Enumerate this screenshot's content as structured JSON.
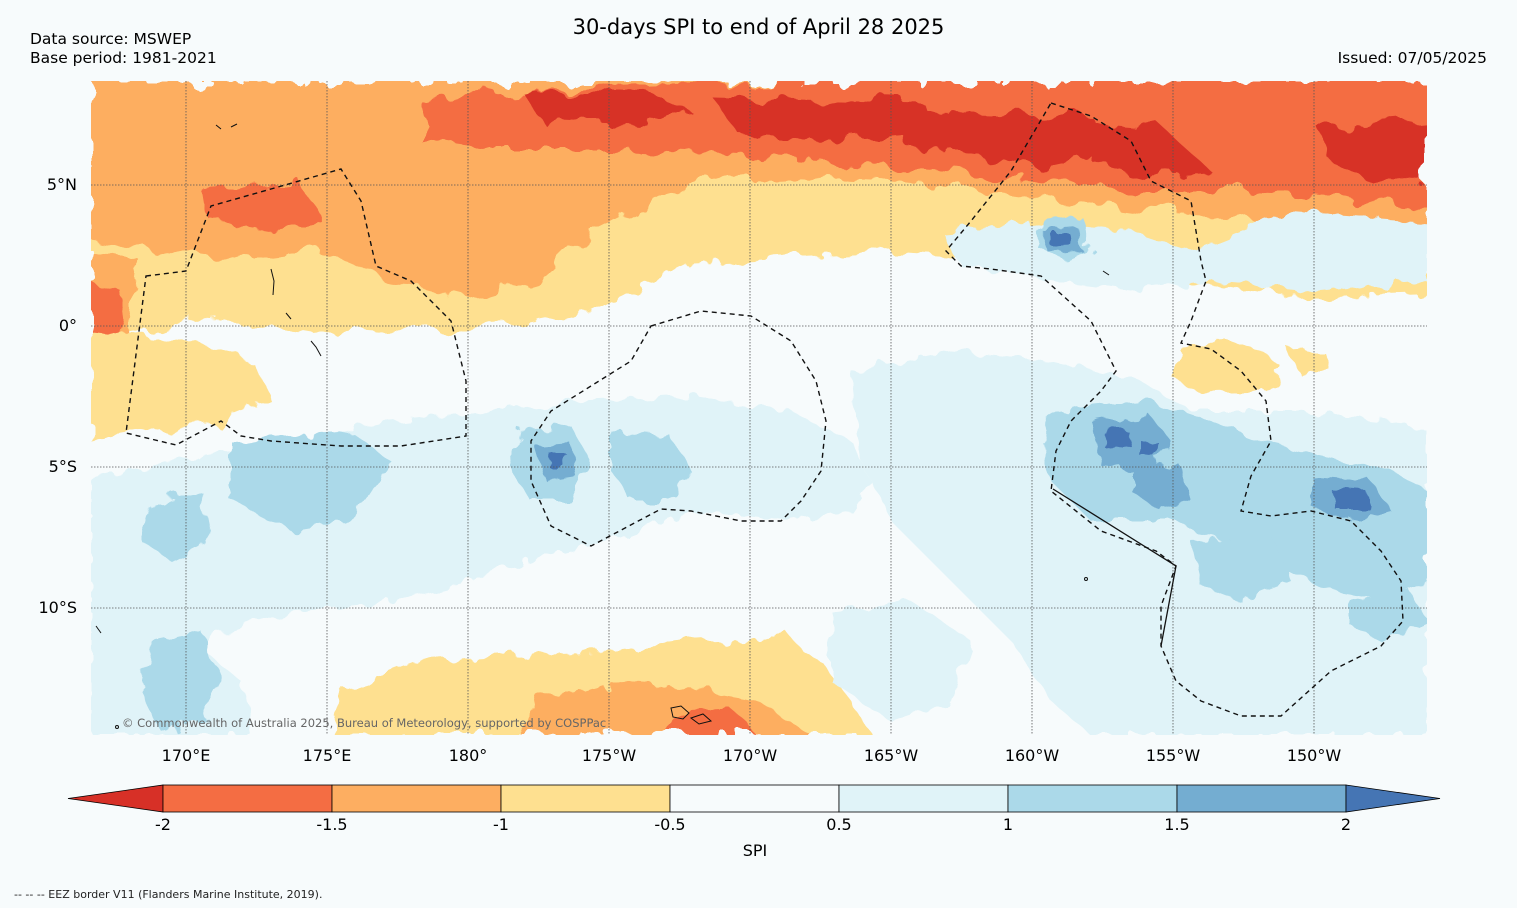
{
  "title": "30-days SPI to end of April 28 2025",
  "data_source": "Data source: MSWEP",
  "base_period": "Base period: 1981-2021",
  "issued": "Issued: 07/05/2025",
  "copyright": "© Commonwealth of Australia 2025, Bureau of Meteorology, supported by COSPPac",
  "footnote": "--  --  -- EEZ border V11 (Flanders Marine Institute, 2019).",
  "lat_labels": [
    "5°N",
    "0°",
    "5°S",
    "10°S"
  ],
  "lon_labels": [
    "170°E",
    "175°E",
    "180°",
    "175°W",
    "170°W",
    "165°W",
    "160°W",
    "155°W",
    "150°W"
  ],
  "colorbar": {
    "label": "SPI",
    "ticks": [
      "-2",
      "-1.5",
      "-1",
      "-0.5",
      "0.5",
      "1",
      "1.5",
      "2"
    ],
    "colors": {
      "lt_-2": "#d73027",
      "-2_-1.5": "#f46d43",
      "-1.5_-1": "#fdae61",
      "-1_-0.5": "#fee090",
      "-0.5_0.5": "#f7fbfc",
      "0.5_1": "#e0f3f8",
      "1_1.5": "#abd9e9",
      "1.5_2": "#74add1",
      "gt_2": "#4575b4"
    }
  }
}
